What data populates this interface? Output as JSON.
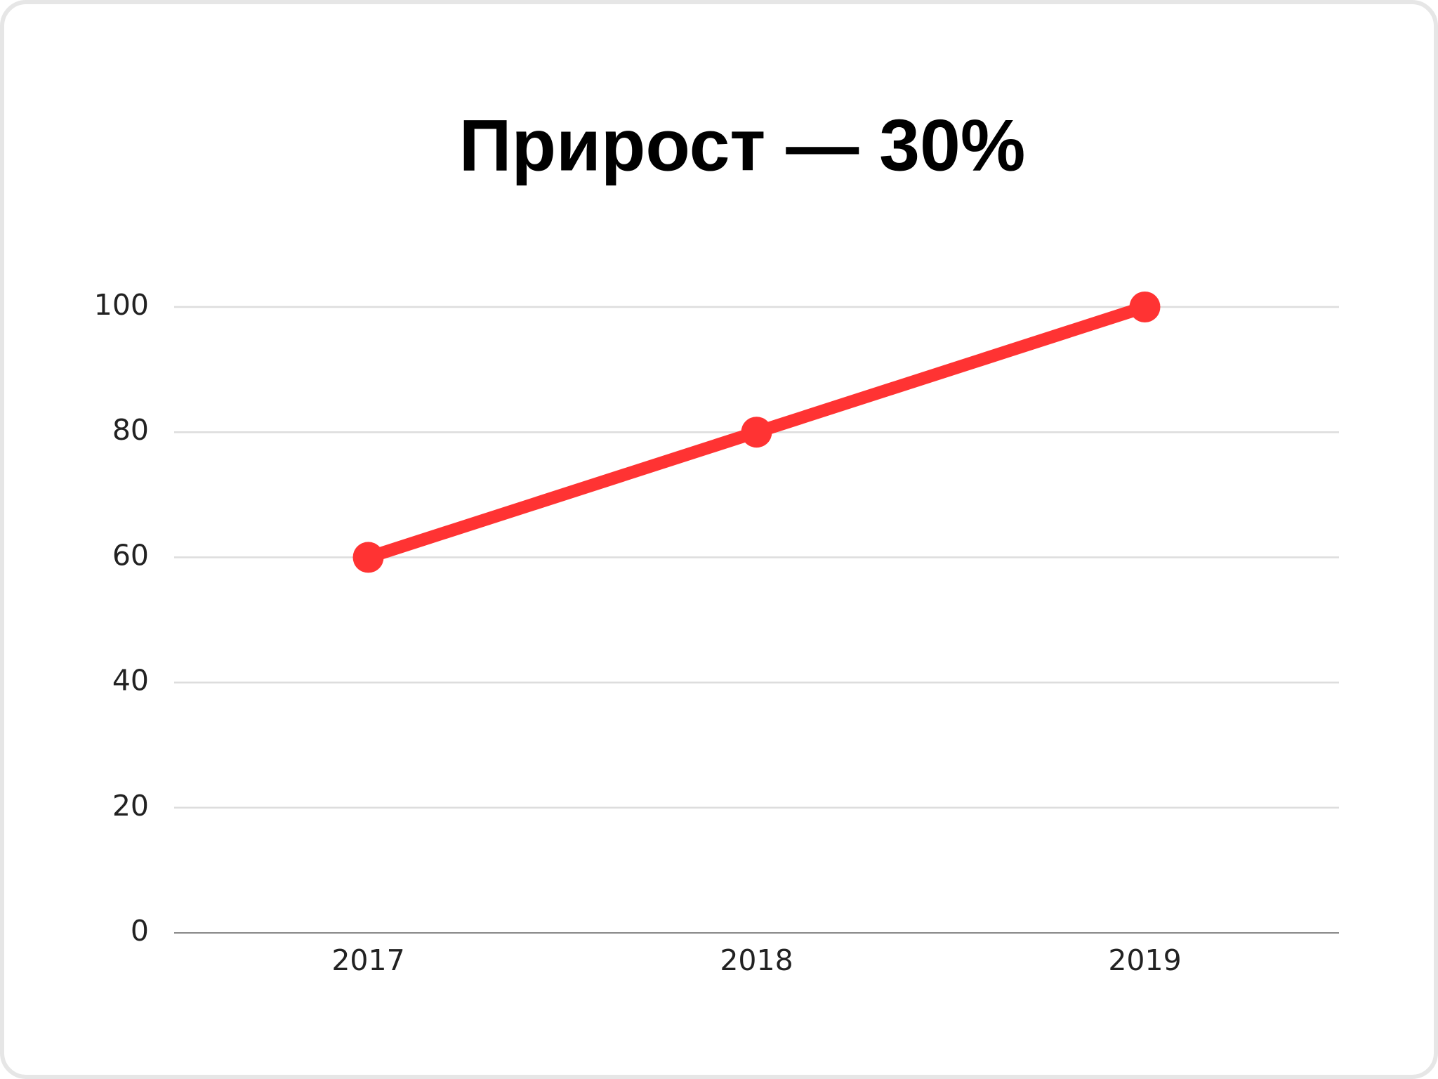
{
  "chart_data": {
    "type": "line",
    "title": "Прирост — 30%",
    "categories": [
      "2017",
      "2018",
      "2019"
    ],
    "values": [
      60,
      80,
      100
    ],
    "color": "#ff3333",
    "ylim": [
      0,
      100
    ],
    "yticks": [
      0,
      20,
      40,
      60,
      80,
      100
    ],
    "grid": true
  }
}
